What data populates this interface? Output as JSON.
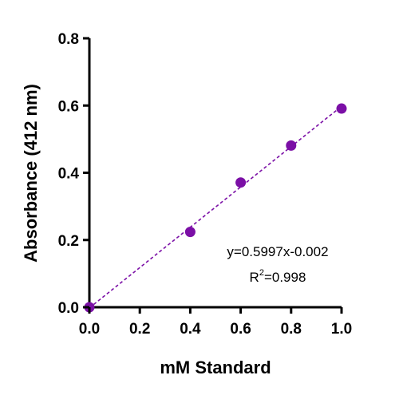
{
  "chart_data": {
    "type": "scatter",
    "title": "",
    "xlabel": "mM Standard",
    "ylabel": "Absorbance (412 nm)",
    "xlim": [
      0.0,
      1.0
    ],
    "ylim": [
      0.0,
      0.8
    ],
    "x_ticks": [
      "0.0",
      "0.2",
      "0.4",
      "0.6",
      "0.8",
      "1.0"
    ],
    "y_ticks": [
      "0.0",
      "0.2",
      "0.4",
      "0.6",
      "0.8"
    ],
    "grid": false,
    "series": [
      {
        "x": [
          0.0,
          0.4,
          0.6,
          0.8,
          1.0
        ],
        "y": [
          0.0,
          0.224,
          0.371,
          0.481,
          0.591
        ],
        "color": "#7b0fa6"
      }
    ],
    "fit": {
      "slope": 0.5997,
      "intercept": -0.002,
      "x_range": [
        0.0,
        1.0
      ],
      "style": "dashed",
      "color": "#7b0fa6"
    },
    "annotations": {
      "equation": "y=0.5997x-0.002",
      "r2_prefix": "R",
      "r2_superscript": "2",
      "r2_value": "=0.998"
    }
  }
}
